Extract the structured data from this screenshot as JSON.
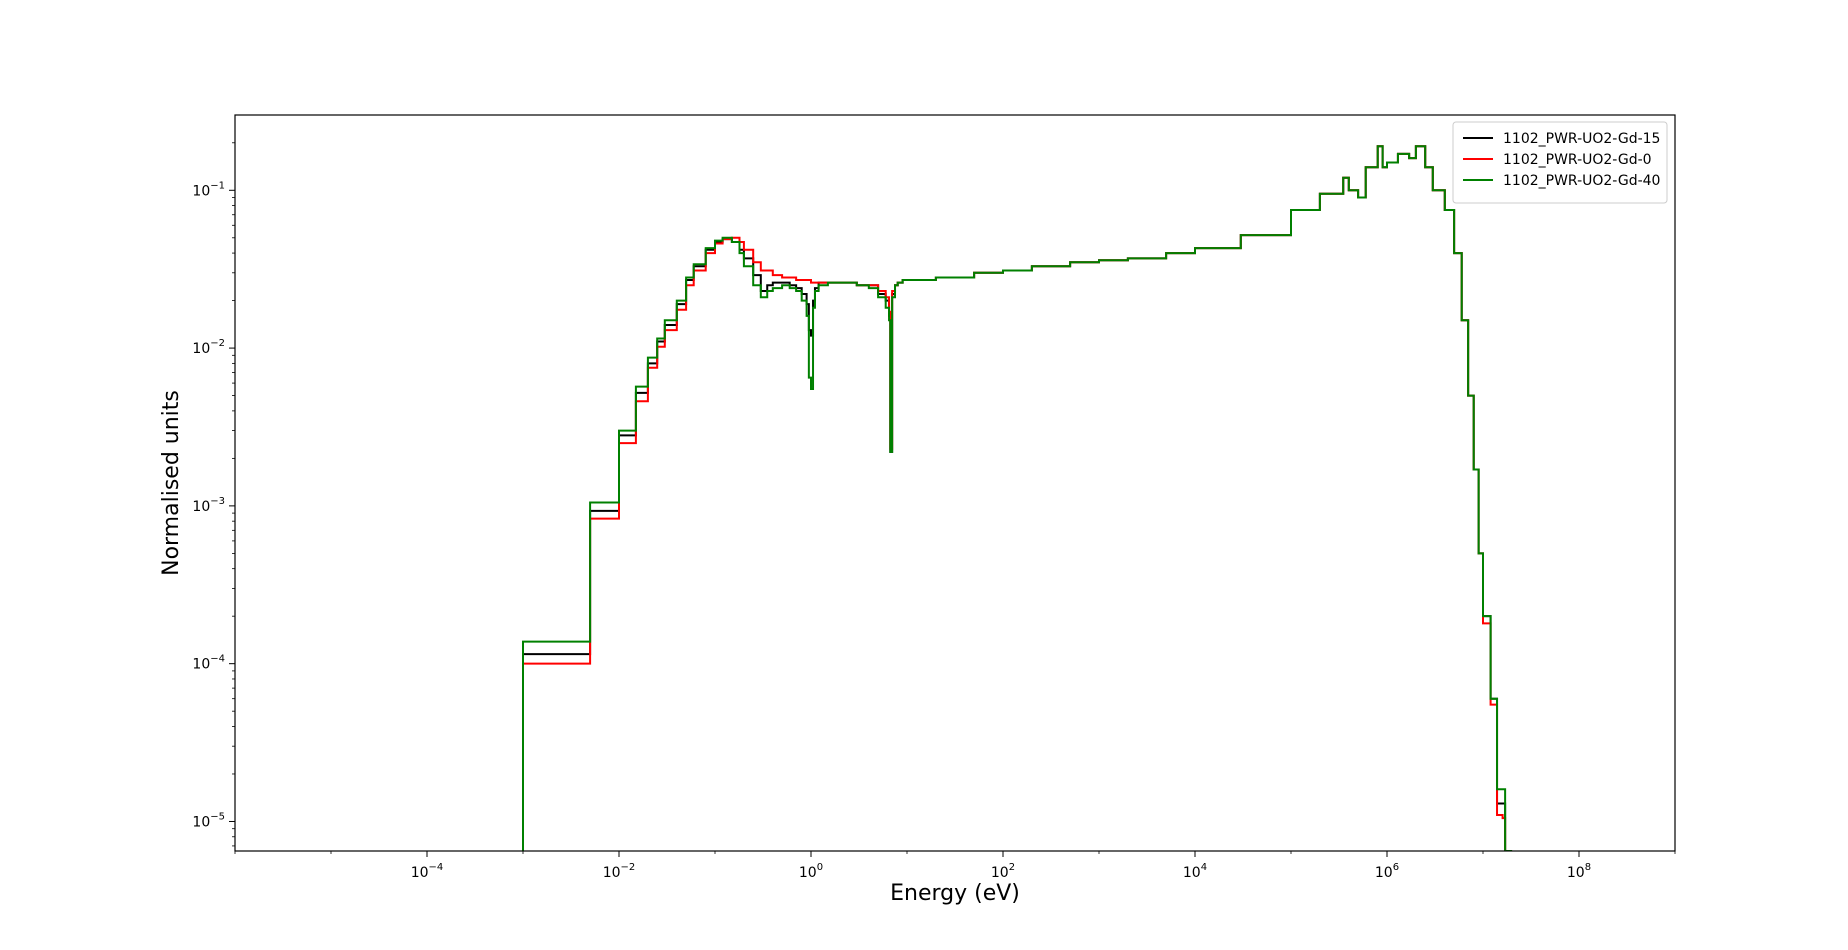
{
  "chart_data": {
    "type": "line",
    "step": true,
    "xlabel": "Energy (eV)",
    "ylabel": "Normalised units",
    "xscale": "log",
    "yscale": "log",
    "xlim": [
      1e-06,
      1000000000.0
    ],
    "ylim": [
      6.5e-06,
      0.3
    ],
    "x_ticks": [
      {
        "base": "10",
        "exp": "−4",
        "value": 0.0001
      },
      {
        "base": "10",
        "exp": "−2",
        "value": 0.01
      },
      {
        "base": "10",
        "exp": "0",
        "value": 1
      },
      {
        "base": "10",
        "exp": "2",
        "value": 100
      },
      {
        "base": "10",
        "exp": "4",
        "value": 10000.0
      },
      {
        "base": "10",
        "exp": "6",
        "value": 1000000.0
      },
      {
        "base": "10",
        "exp": "8",
        "value": 100000000.0
      }
    ],
    "y_ticks": [
      {
        "base": "10",
        "exp": "−5",
        "value": 1e-05
      },
      {
        "base": "10",
        "exp": "−4",
        "value": 0.0001
      },
      {
        "base": "10",
        "exp": "−3",
        "value": 0.001
      },
      {
        "base": "10",
        "exp": "−2",
        "value": 0.01
      },
      {
        "base": "10",
        "exp": "−1",
        "value": 0.1
      }
    ],
    "grid": false,
    "legend_position": "top-right",
    "series": [
      {
        "name": "1102_PWR-UO2-Gd-15",
        "color": "#000000",
        "x": [
          0.001,
          0.005,
          0.01,
          0.015,
          0.02,
          0.025,
          0.03,
          0.04,
          0.05,
          0.06,
          0.08,
          0.1,
          0.12,
          0.15,
          0.18,
          0.2,
          0.25,
          0.3,
          0.35,
          0.4,
          0.5,
          0.6,
          0.7,
          0.8,
          0.9,
          0.95,
          1.0,
          1.05,
          1.1,
          1.2,
          1.5,
          2,
          3,
          4,
          5,
          6,
          6.5,
          6.7,
          7,
          7.5,
          8,
          9,
          10,
          15,
          20,
          50,
          100,
          200,
          500,
          1000,
          2000,
          5000,
          10000,
          30000,
          100000,
          200000,
          350000,
          400000,
          500000,
          600000,
          800000,
          900000,
          1000000,
          1300000,
          1700000,
          2000000,
          2500000,
          3000000,
          4000000,
          5000000,
          6000000,
          7000000,
          8000000,
          9000000,
          10000000,
          12000000,
          14000000,
          16000000,
          17000000,
          19600000
        ],
        "y": [
          0.000115,
          0.00093,
          0.0028,
          0.0052,
          0.008,
          0.011,
          0.014,
          0.019,
          0.027,
          0.033,
          0.042,
          0.047,
          0.049,
          0.047,
          0.042,
          0.037,
          0.029,
          0.023,
          0.025,
          0.026,
          0.026,
          0.025,
          0.024,
          0.022,
          0.019,
          0.013,
          0.012,
          0.02,
          0.024,
          0.026,
          0.026,
          0.026,
          0.025,
          0.025,
          0.022,
          0.02,
          0.016,
          0.0022,
          0.022,
          0.025,
          0.026,
          0.027,
          0.027,
          0.027,
          0.028,
          0.03,
          0.031,
          0.033,
          0.035,
          0.036,
          0.037,
          0.04,
          0.043,
          0.052,
          0.075,
          0.095,
          0.12,
          0.1,
          0.09,
          0.14,
          0.19,
          0.14,
          0.15,
          0.17,
          0.16,
          0.19,
          0.14,
          0.1,
          0.075,
          0.04,
          0.015,
          0.005,
          0.0017,
          0.0005,
          0.0002,
          6e-05,
          1.3e-05,
          1.3e-05,
          6.5e-06,
          6.5e-06
        ]
      },
      {
        "name": "1102_PWR-UO2-Gd-0",
        "color": "#ff0000",
        "x": [
          0.001,
          0.005,
          0.01,
          0.015,
          0.02,
          0.025,
          0.03,
          0.04,
          0.05,
          0.06,
          0.08,
          0.1,
          0.12,
          0.15,
          0.18,
          0.2,
          0.25,
          0.3,
          0.4,
          0.5,
          0.7,
          1.0,
          1.5,
          2,
          3,
          4,
          5,
          6,
          6.5,
          6.7,
          7,
          7.5,
          8,
          9,
          10,
          15,
          20,
          50,
          100,
          200,
          500,
          1000,
          2000,
          5000,
          10000,
          30000,
          100000,
          200000,
          350000,
          400000,
          500000,
          600000,
          800000,
          900000,
          1000000,
          1300000,
          1700000,
          2000000,
          2500000,
          3000000,
          4000000,
          5000000,
          6000000,
          7000000,
          8000000,
          9000000,
          10000000,
          12000000,
          14000000,
          16000000,
          17000000,
          19600000
        ],
        "y": [
          0.0001,
          0.00083,
          0.0025,
          0.0046,
          0.0075,
          0.0102,
          0.013,
          0.0175,
          0.025,
          0.031,
          0.04,
          0.046,
          0.049,
          0.05,
          0.047,
          0.042,
          0.035,
          0.031,
          0.029,
          0.028,
          0.027,
          0.026,
          0.026,
          0.026,
          0.025,
          0.025,
          0.023,
          0.021,
          0.017,
          0.0023,
          0.023,
          0.025,
          0.026,
          0.027,
          0.027,
          0.027,
          0.028,
          0.03,
          0.031,
          0.033,
          0.035,
          0.036,
          0.037,
          0.04,
          0.043,
          0.052,
          0.075,
          0.095,
          0.12,
          0.1,
          0.09,
          0.14,
          0.19,
          0.14,
          0.15,
          0.17,
          0.16,
          0.19,
          0.14,
          0.1,
          0.075,
          0.04,
          0.015,
          0.005,
          0.0017,
          0.0005,
          0.00018,
          5.5e-05,
          1.1e-05,
          1.05e-05,
          6.5e-06,
          6.5e-06
        ]
      },
      {
        "name": "1102_PWR-UO2-Gd-40",
        "color": "#008000",
        "x": [
          0.001,
          0.005,
          0.01,
          0.015,
          0.02,
          0.025,
          0.03,
          0.04,
          0.05,
          0.06,
          0.08,
          0.1,
          0.12,
          0.15,
          0.18,
          0.2,
          0.25,
          0.3,
          0.35,
          0.4,
          0.5,
          0.6,
          0.7,
          0.8,
          0.9,
          0.95,
          1.0,
          1.05,
          1.1,
          1.2,
          1.5,
          2,
          3,
          4,
          5,
          6,
          6.5,
          6.7,
          7,
          7.5,
          8,
          9,
          10,
          15,
          20,
          50,
          100,
          200,
          500,
          1000,
          2000,
          5000,
          10000,
          30000,
          100000,
          200000,
          350000,
          400000,
          500000,
          600000,
          800000,
          900000,
          1000000,
          1300000,
          1700000,
          2000000,
          2500000,
          3000000,
          4000000,
          5000000,
          6000000,
          7000000,
          8000000,
          9000000,
          10000000,
          12000000,
          14000000,
          16000000,
          17000000,
          19600000
        ],
        "y": [
          0.000138,
          0.00105,
          0.003,
          0.0057,
          0.0087,
          0.0115,
          0.015,
          0.02,
          0.028,
          0.034,
          0.043,
          0.048,
          0.05,
          0.047,
          0.04,
          0.033,
          0.025,
          0.021,
          0.023,
          0.024,
          0.025,
          0.024,
          0.023,
          0.02,
          0.016,
          0.0065,
          0.0055,
          0.018,
          0.023,
          0.025,
          0.026,
          0.026,
          0.025,
          0.024,
          0.021,
          0.018,
          0.015,
          0.0022,
          0.021,
          0.025,
          0.026,
          0.027,
          0.027,
          0.027,
          0.028,
          0.03,
          0.031,
          0.033,
          0.035,
          0.036,
          0.037,
          0.04,
          0.043,
          0.052,
          0.075,
          0.095,
          0.12,
          0.1,
          0.09,
          0.14,
          0.19,
          0.14,
          0.15,
          0.17,
          0.16,
          0.19,
          0.14,
          0.1,
          0.075,
          0.04,
          0.015,
          0.005,
          0.0017,
          0.0005,
          0.0002,
          6e-05,
          1.6e-05,
          1.6e-05,
          6.5e-06,
          6.5e-06
        ]
      }
    ]
  }
}
